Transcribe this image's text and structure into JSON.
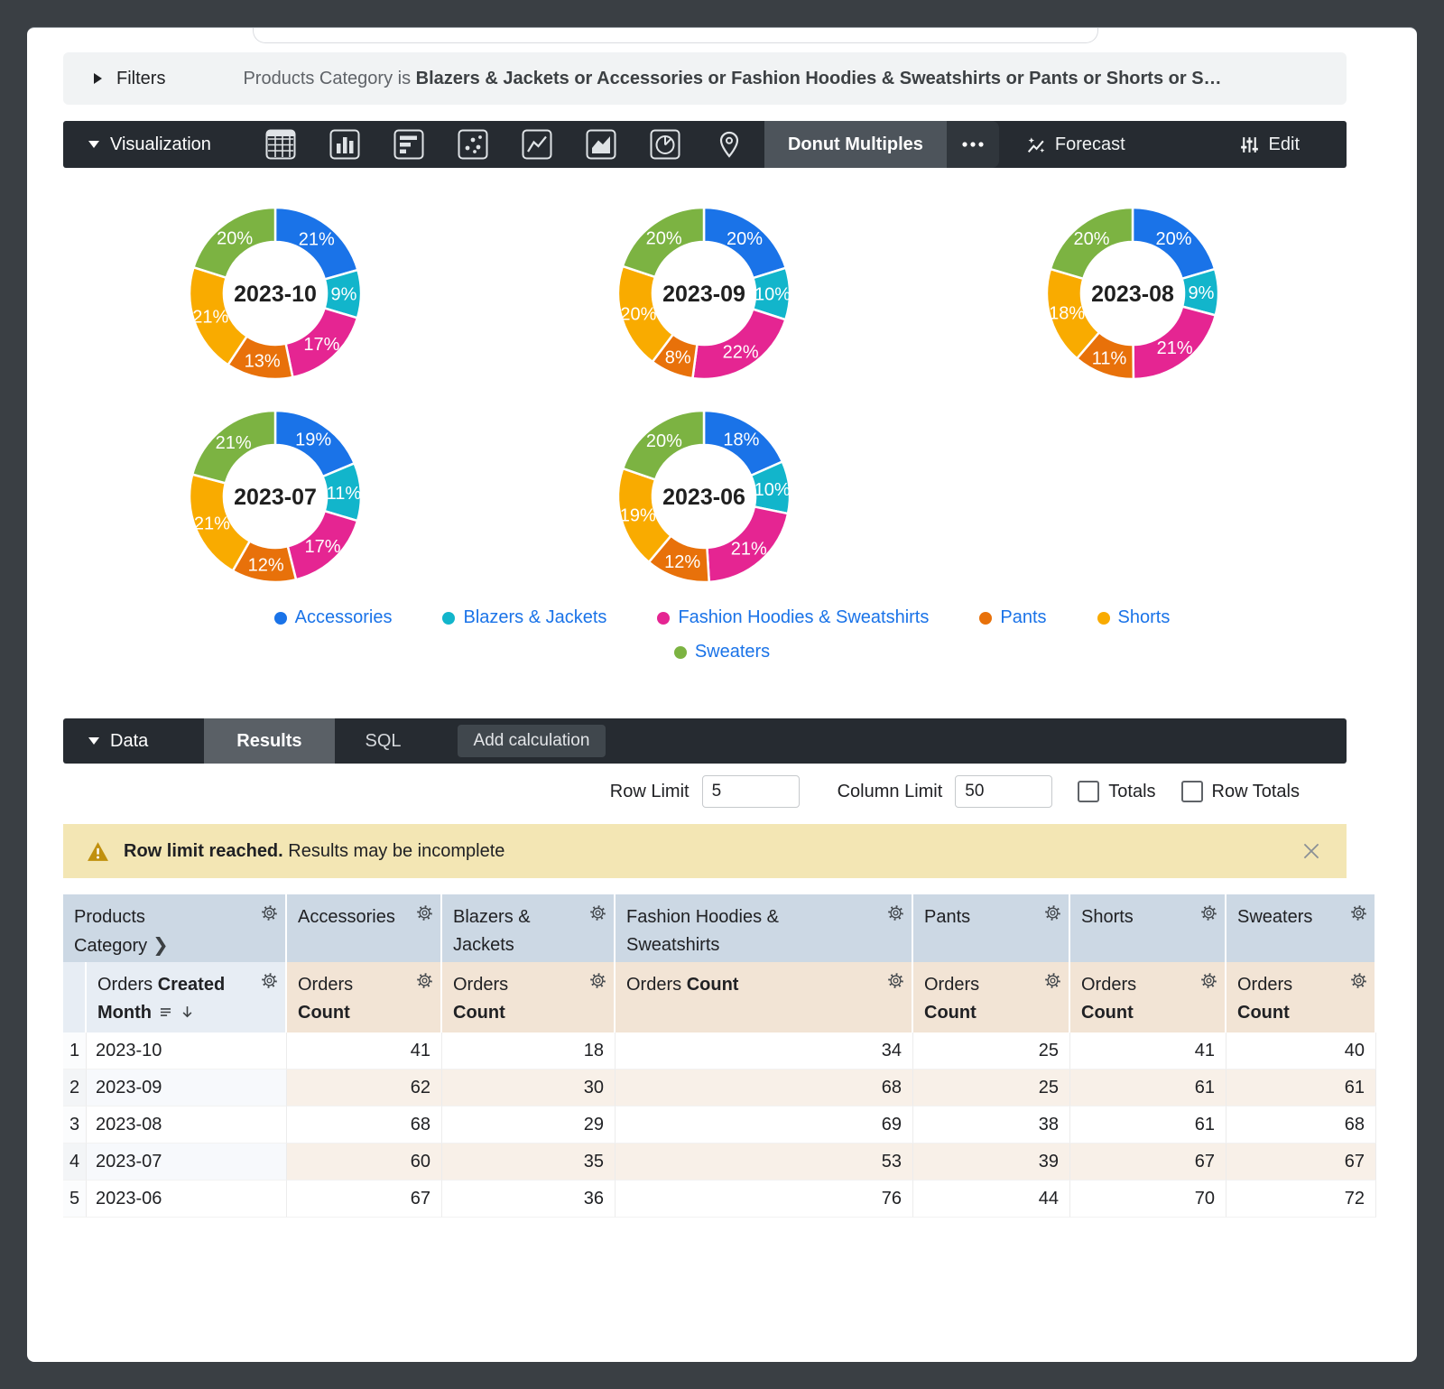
{
  "filters": {
    "label": "Filters",
    "expression_prefix": "Products Category is",
    "expression_values": "Blazers & Jackets or Accessories or Fashion Hoodies & Sweatshirts or Pants or Shorts or S…"
  },
  "visualization": {
    "label": "Visualization",
    "selected_type": "Donut Multiples",
    "more_label": "•••",
    "forecast_label": "Forecast",
    "edit_label": "Edit",
    "icon_names": [
      "table-icon",
      "column-chart-icon",
      "bar-chart-icon",
      "scatter-chart-icon",
      "line-chart-icon",
      "area-chart-icon",
      "pie-chart-icon",
      "map-pin-icon"
    ]
  },
  "chart_data": {
    "type": "pie",
    "subtype": "donut-multiples",
    "legend_position": "bottom",
    "series_categories": [
      "Accessories",
      "Blazers & Jackets",
      "Fashion Hoodies & Sweatshirts",
      "Pants",
      "Shorts",
      "Sweaters"
    ],
    "colors": [
      "#1a73e8",
      "#12b5cb",
      "#e52592",
      "#e8710a",
      "#f9ab00",
      "#7cb342"
    ],
    "donuts": [
      {
        "label": "2023-10",
        "values": [
          41,
          18,
          34,
          25,
          41,
          40
        ],
        "percent_labels": [
          "21%",
          "9%",
          "17%",
          "13%",
          "21%",
          "20%"
        ]
      },
      {
        "label": "2023-09",
        "values": [
          62,
          30,
          68,
          25,
          61,
          61
        ],
        "percent_labels": [
          "20%",
          "10%",
          "22%",
          "8%",
          "20%",
          "20%"
        ]
      },
      {
        "label": "2023-08",
        "values": [
          68,
          29,
          69,
          38,
          61,
          68
        ],
        "percent_labels": [
          "20%",
          "9%",
          "21%",
          "11%",
          "18%",
          "20%"
        ]
      },
      {
        "label": "2023-07",
        "values": [
          60,
          35,
          53,
          39,
          67,
          67
        ],
        "percent_labels": [
          "19%",
          "11%",
          "17%",
          "12%",
          "21%",
          "21%"
        ]
      },
      {
        "label": "2023-06",
        "values": [
          67,
          36,
          76,
          44,
          70,
          72
        ],
        "percent_labels": [
          "18%",
          "10%",
          "21%",
          "12%",
          "19%",
          "20%"
        ]
      }
    ]
  },
  "data_section": {
    "label": "Data",
    "tabs": [
      {
        "label": "Results",
        "active": true
      },
      {
        "label": "SQL",
        "active": false
      }
    ],
    "add_calculation_label": "Add calculation",
    "row_limit_label": "Row Limit",
    "row_limit_value": "5",
    "column_limit_label": "Column Limit",
    "column_limit_value": "50",
    "totals_label": "Totals",
    "row_totals_label": "Row Totals",
    "totals_checked": false,
    "row_totals_checked": false
  },
  "warning": {
    "bold": "Row limit reached.",
    "text": "Results may be incomplete"
  },
  "table": {
    "dimension_group_header": "Products Category",
    "dimension_header_normal": "Orders",
    "dimension_header_bold": "Created Month",
    "measure_columns": [
      "Accessories",
      "Blazers & Jackets",
      "Fashion Hoodies & Sweatshirts",
      "Pants",
      "Shorts",
      "Sweaters"
    ],
    "measure_subheader_normal": "Orders",
    "measure_subheader_bold": "Count",
    "rows": [
      {
        "num": "1",
        "month": "2023-10",
        "values": [
          41,
          18,
          34,
          25,
          41,
          40
        ]
      },
      {
        "num": "2",
        "month": "2023-09",
        "values": [
          62,
          30,
          68,
          25,
          61,
          61
        ]
      },
      {
        "num": "3",
        "month": "2023-08",
        "values": [
          68,
          29,
          69,
          38,
          61,
          68
        ]
      },
      {
        "num": "4",
        "month": "2023-07",
        "values": [
          60,
          35,
          53,
          39,
          67,
          67
        ]
      },
      {
        "num": "5",
        "month": "2023-06",
        "values": [
          67,
          36,
          76,
          44,
          70,
          72
        ]
      }
    ]
  },
  "colors": {
    "accent_blue": "#1a73e8",
    "dark_bar": "#262b31",
    "warning_bg": "#f3e6b4",
    "header_blue": "#ccd8e4",
    "header_beige": "#f2e4d5"
  }
}
